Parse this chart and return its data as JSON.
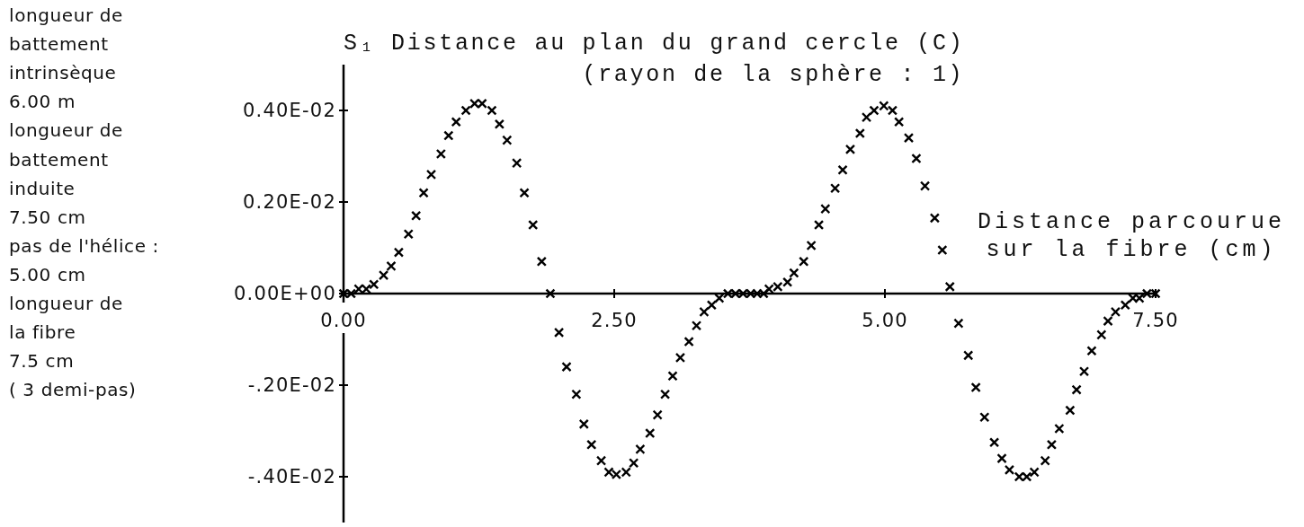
{
  "chart_data": {
    "type": "scatter",
    "ylabel": "S₁ Distance au plan du grand cercle (C)\n(rayon de la sphère : 1)",
    "xlabel": "Distance parcourue\nsur la fibre (cm)",
    "annotations": [
      "longueur de\nbattement\nintrinsèque\n6.00 m",
      "longueur de\nbattement\ninduite\n7.50 cm",
      "pas de l'hélice :\n5.00 cm",
      "longueur de\nla fibre\n7.5 cm\n( 3 demi-pas)"
    ],
    "xlim": [
      0,
      7.5
    ],
    "ylim": [
      -0.005,
      0.005
    ],
    "xticks": [
      {
        "value": 0,
        "label": "0.00"
      },
      {
        "value": 2.5,
        "label": "2.50"
      },
      {
        "value": 5,
        "label": "5.00"
      },
      {
        "value": 7.5,
        "label": "7.50"
      }
    ],
    "yticks": [
      {
        "value": 0.004,
        "label": "0.40E-02"
      },
      {
        "value": 0.002,
        "label": "0.20E-02"
      },
      {
        "value": 0,
        "label": "0.00E+00"
      },
      {
        "value": -0.002,
        "label": "-.20E-02"
      },
      {
        "value": -0.004,
        "label": "-.40E-02"
      }
    ],
    "marker": "cross",
    "color": "#000000",
    "x": [
      0,
      0.07,
      0.14,
      0.21,
      0.28,
      0.37,
      0.44,
      0.51,
      0.6,
      0.67,
      0.74,
      0.81,
      0.9,
      0.97,
      1.04,
      1.13,
      1.21,
      1.28,
      1.37,
      1.44,
      1.51,
      1.6,
      1.67,
      1.75,
      1.83,
      1.91,
      1.99,
      2.06,
      2.15,
      2.22,
      2.29,
      2.38,
      2.45,
      2.52,
      2.61,
      2.68,
      2.74,
      2.83,
      2.9,
      2.97,
      3.04,
      3.11,
      3.19,
      3.26,
      3.33,
      3.4,
      3.47,
      3.55,
      3.62,
      3.69,
      3.76,
      3.82,
      3.88,
      3.93,
      4.01,
      4.1,
      4.16,
      4.25,
      4.32,
      4.39,
      4.45,
      4.54,
      4.61,
      4.68,
      4.77,
      4.83,
      4.9,
      4.99,
      5.07,
      5.13,
      5.22,
      5.29,
      5.37,
      5.46,
      5.53,
      5.6,
      5.68,
      5.77,
      5.84,
      5.92,
      6.01,
      6.08,
      6.15,
      6.24,
      6.31,
      6.38,
      6.48,
      6.54,
      6.61,
      6.71,
      6.77,
      6.84,
      6.91,
      7,
      7.06,
      7.13,
      7.22,
      7.29,
      7.35,
      7.42,
      7.5
    ],
    "values": [
      0,
      0,
      0.0001,
      0.0001,
      0.0002,
      0.0004,
      0.0006,
      0.0009,
      0.0013,
      0.0017,
      0.0022,
      0.0026,
      0.00305,
      0.00345,
      0.00375,
      0.004,
      0.00415,
      0.00415,
      0.004,
      0.0037,
      0.00335,
      0.00285,
      0.0022,
      0.0015,
      0.0007,
      0,
      -0.00085,
      -0.0016,
      -0.0022,
      -0.00285,
      -0.0033,
      -0.00365,
      -0.0039,
      -0.00395,
      -0.0039,
      -0.0037,
      -0.0034,
      -0.00305,
      -0.00265,
      -0.0022,
      -0.0018,
      -0.0014,
      -0.00105,
      -0.0007,
      -0.0004,
      -0.00025,
      -0.0001,
      0,
      0,
      0,
      0,
      0,
      0,
      0.0001,
      0.00015,
      0.00025,
      0.00045,
      0.0007,
      0.00105,
      0.0015,
      0.00185,
      0.0023,
      0.0027,
      0.00315,
      0.0035,
      0.00385,
      0.004,
      0.0041,
      0.004,
      0.00375,
      0.0034,
      0.00295,
      0.00235,
      0.00165,
      0.00095,
      0.00015,
      -0.00065,
      -0.00135,
      -0.00205,
      -0.0027,
      -0.00325,
      -0.0036,
      -0.00385,
      -0.004,
      -0.004,
      -0.0039,
      -0.00365,
      -0.0033,
      -0.00295,
      -0.00255,
      -0.0021,
      -0.0017,
      -0.00125,
      -0.0009,
      -0.0006,
      -0.0004,
      -0.00025,
      -0.0001,
      -0.0001,
      0,
      0
    ]
  }
}
